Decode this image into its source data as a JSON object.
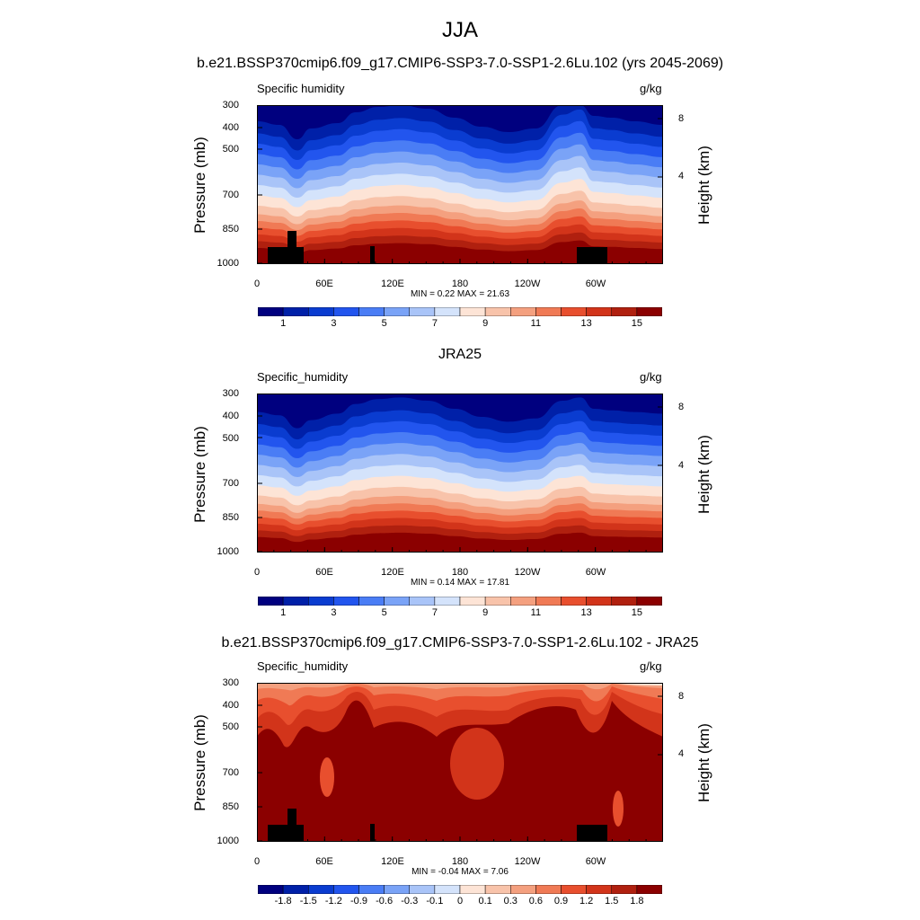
{
  "figure_title": "JJA",
  "panels": [
    {
      "title": "b.e21.BSSP370cmip6.f09_g17.CMIP6-SSP3-7.0-SSP1-2.6Lu.102 (yrs 2045-2069)",
      "variable_label": "Specific humidity",
      "units": "g/kg",
      "stats": "MIN =  0.22  MAX =  21.63",
      "colorbar_labels": [
        "1",
        "3",
        "5",
        "7",
        "9",
        "11",
        "13",
        "15"
      ]
    },
    {
      "title": "JRA25",
      "variable_label": "Specific_humidity",
      "units": "g/kg",
      "stats": "MIN =  0.14  MAX =  17.81",
      "colorbar_labels": [
        "1",
        "3",
        "5",
        "7",
        "9",
        "11",
        "13",
        "15"
      ]
    },
    {
      "title": "b.e21.BSSP370cmip6.f09_g17.CMIP6-SSP3-7.0-SSP1-2.6Lu.102 - JRA25",
      "variable_label": "Specific_humidity",
      "units": "g/kg",
      "stats": "MIN = -0.04  MAX =  7.06",
      "colorbar_labels": [
        "-1.8",
        "-1.5",
        "-1.2",
        "-0.9",
        "-0.6",
        "-0.3",
        "-0.1",
        "0",
        "0.1",
        "0.3",
        "0.6",
        "0.9",
        "1.2",
        "1.5",
        "1.8"
      ]
    }
  ],
  "axes": {
    "y_left_title": "Pressure (mb)",
    "y_right_title": "Height (km)",
    "y_ticks": [
      "300",
      "400",
      "500",
      "700",
      "850",
      "1000"
    ],
    "y_right_ticks": [
      "8",
      "4"
    ],
    "x_ticks": [
      "0",
      "60E",
      "120E",
      "180",
      "120W",
      "60W"
    ]
  },
  "chart_data": [
    {
      "type": "heatmap",
      "title": "b.e21.BSSP370cmip6.f09_g17.CMIP6-SSP3-7.0-SSP1-2.6Lu.102 (yrs 2045-2069)",
      "variable": "Specific humidity",
      "units": "g/kg",
      "xlabel": "",
      "ylabel": "Pressure (mb)",
      "ylabel_right": "Height (km)",
      "x_range_deg": [
        0,
        360
      ],
      "ylim_mb": [
        1000,
        300
      ],
      "colorbar_levels": [
        1,
        2,
        3,
        4,
        5,
        6,
        7,
        8,
        9,
        10,
        11,
        12,
        13,
        14,
        15
      ],
      "min": 0.22,
      "max": 21.63
    },
    {
      "type": "heatmap",
      "title": "JRA25",
      "variable": "Specific_humidity",
      "units": "g/kg",
      "xlabel": "",
      "ylabel": "Pressure (mb)",
      "ylabel_right": "Height (km)",
      "x_range_deg": [
        0,
        360
      ],
      "ylim_mb": [
        1000,
        300
      ],
      "colorbar_levels": [
        1,
        2,
        3,
        4,
        5,
        6,
        7,
        8,
        9,
        10,
        11,
        12,
        13,
        14,
        15
      ],
      "min": 0.14,
      "max": 17.81
    },
    {
      "type": "heatmap",
      "title": "b.e21.BSSP370cmip6.f09_g17.CMIP6-SSP3-7.0-SSP1-2.6Lu.102 - JRA25",
      "variable": "Specific_humidity",
      "units": "g/kg",
      "xlabel": "",
      "ylabel": "Pressure (mb)",
      "ylabel_right": "Height (km)",
      "x_range_deg": [
        0,
        360
      ],
      "ylim_mb": [
        1000,
        300
      ],
      "colorbar_levels": [
        -1.8,
        -1.5,
        -1.2,
        -0.9,
        -0.6,
        -0.3,
        -0.1,
        0,
        0.1,
        0.3,
        0.6,
        0.9,
        1.2,
        1.5,
        1.8
      ],
      "min": -0.04,
      "max": 7.06
    }
  ],
  "colormap": [
    "#00007f",
    "#0020a8",
    "#0a3cd0",
    "#2255ee",
    "#4a7df5",
    "#7aa3f7",
    "#a9c4f8",
    "#d4e3fb",
    "#fde4d6",
    "#f8c3aa",
    "#f4a07f",
    "#f07a55",
    "#e84f2e",
    "#d2341a",
    "#b0200f",
    "#8b0000"
  ]
}
